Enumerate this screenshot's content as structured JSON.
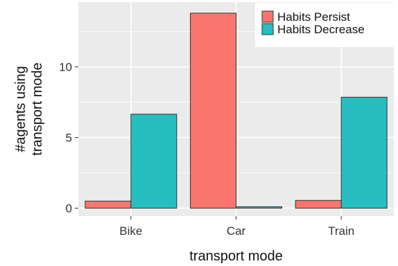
{
  "chart_data": {
    "type": "bar",
    "categories": [
      "Bike",
      "Car",
      "Train"
    ],
    "series": [
      {
        "name": "Habits Persist",
        "values": [
          0.5,
          13.8,
          0.55
        ],
        "color": "#F8766D"
      },
      {
        "name": "Habits Decrease",
        "values": [
          6.65,
          0.1,
          7.85
        ],
        "color": "#26BEC0"
      }
    ],
    "xlabel": "transport mode",
    "ylabel": [
      "#agents using",
      "transport mode"
    ],
    "ylim": [
      0,
      14
    ],
    "yticks": [
      0,
      5,
      10
    ],
    "grid": true,
    "legend_position": "top-right",
    "panel_background": "#EBEBEB",
    "grid_color": "#FFFFFF"
  }
}
